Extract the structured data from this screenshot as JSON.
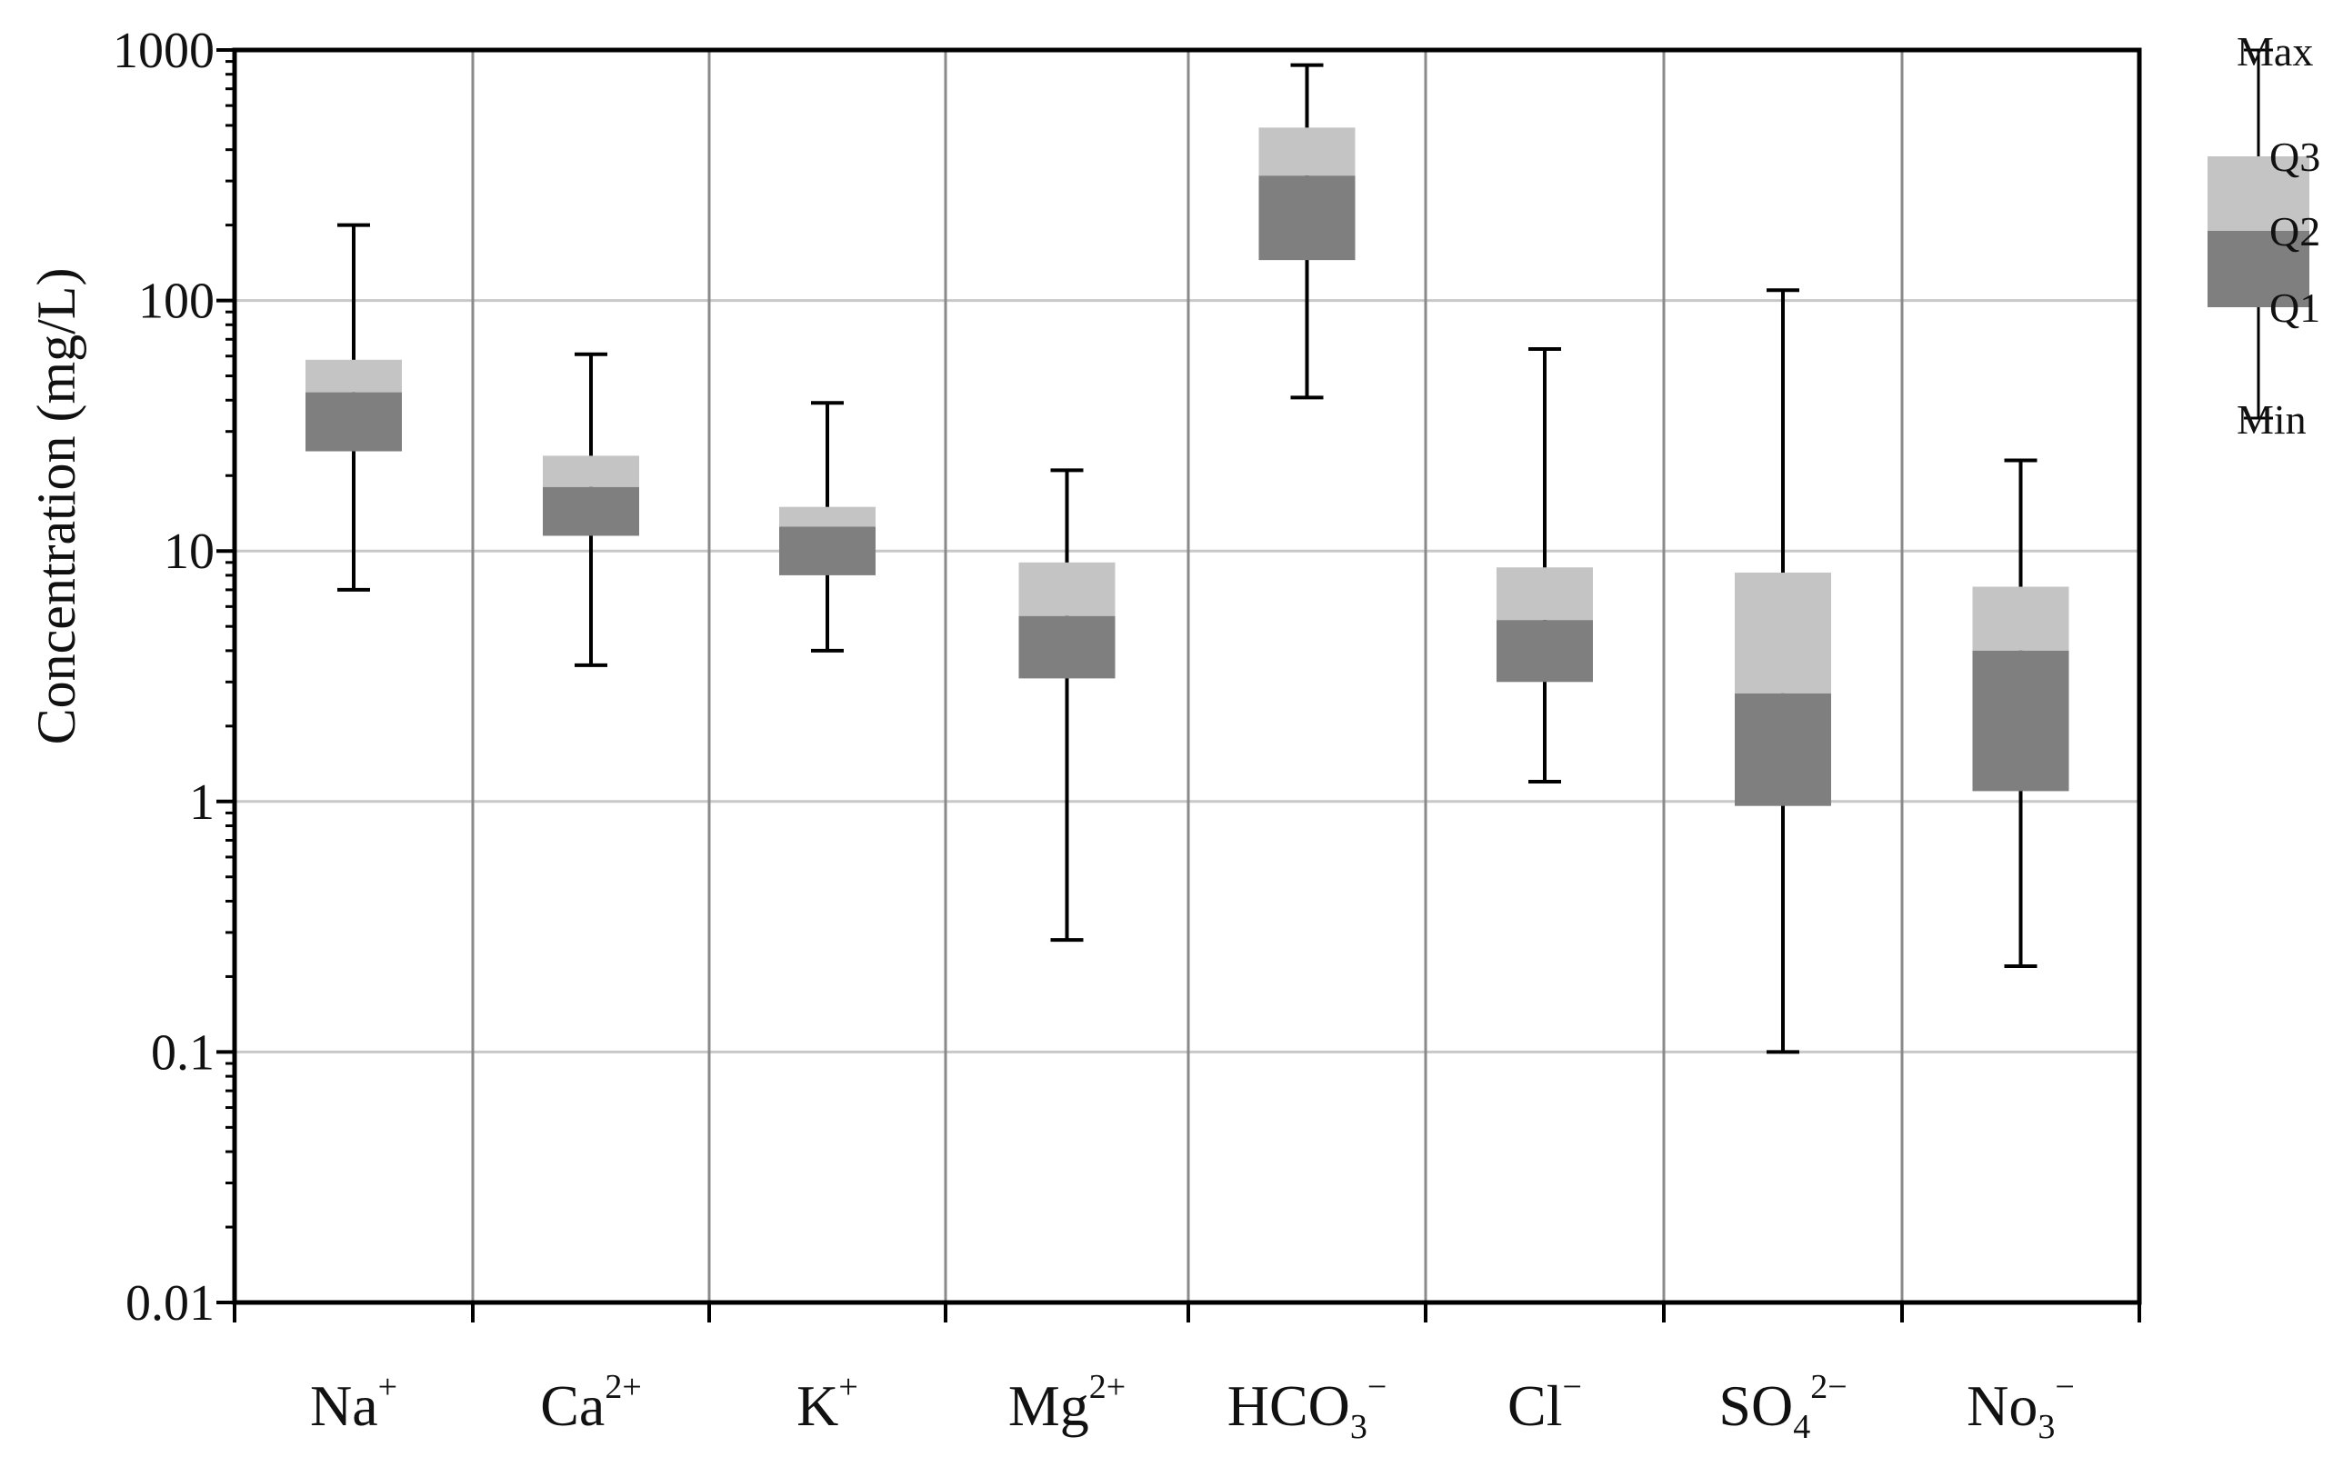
{
  "chart_data": {
    "type": "box",
    "ylabel": "Concentration (mg/L)",
    "yscale": "log",
    "ylim": [
      0.01,
      1000
    ],
    "yticks": [
      {
        "value": 0.01,
        "label": "0.01"
      },
      {
        "value": 0.1,
        "label": "0.1"
      },
      {
        "value": 1,
        "label": "1"
      },
      {
        "value": 10,
        "label": "10"
      },
      {
        "value": 100,
        "label": "100"
      },
      {
        "value": 1000,
        "label": "1000"
      }
    ],
    "grid": {
      "horizontal": true,
      "vertical": true
    },
    "categories": [
      {
        "base": "Na",
        "sub": "",
        "sup": "+"
      },
      {
        "base": "Ca",
        "sub": "",
        "sup": "2+"
      },
      {
        "base": "K",
        "sub": "",
        "sup": "+"
      },
      {
        "base": "Mg",
        "sub": "",
        "sup": "2+"
      },
      {
        "base": "HCO",
        "sub": "3",
        "sup": "−"
      },
      {
        "base": "Cl",
        "sub": "",
        "sup": "−"
      },
      {
        "base": "SO",
        "sub": "4",
        "sup": "2−"
      },
      {
        "base": "No",
        "sub": "3",
        "sup": "−"
      }
    ],
    "boxes": [
      {
        "min": 7,
        "q1": 25,
        "q2": 43,
        "q3": 58,
        "max": 200
      },
      {
        "min": 3.5,
        "q1": 11.5,
        "q2": 18,
        "q3": 24,
        "max": 61
      },
      {
        "min": 4,
        "q1": 8,
        "q2": 12.5,
        "q3": 15,
        "max": 39
      },
      {
        "min": 0.28,
        "q1": 3.1,
        "q2": 5.5,
        "q3": 9,
        "max": 21
      },
      {
        "min": 41,
        "q1": 145,
        "q2": 315,
        "q3": 490,
        "max": 870
      },
      {
        "min": 1.2,
        "q1": 3,
        "q2": 5.3,
        "q3": 8.6,
        "max": 64
      },
      {
        "min": 0.1,
        "q1": 0.96,
        "q2": 2.7,
        "q3": 8.2,
        "max": 110
      },
      {
        "min": 0.22,
        "q1": 1.1,
        "q2": 4,
        "q3": 7.2,
        "max": 23
      }
    ],
    "legend": {
      "position": "top-right",
      "labels": {
        "max": "Max",
        "q3": "Q3",
        "q2": "Q2",
        "q1": "Q1",
        "min": "Min"
      }
    },
    "colors": {
      "upper_box": "#c4c4c4",
      "lower_box": "#7f7f7f",
      "grid_horizontal": "#c8c8c8",
      "grid_vertical": "#8a8a8a",
      "axis": "#000000"
    }
  }
}
